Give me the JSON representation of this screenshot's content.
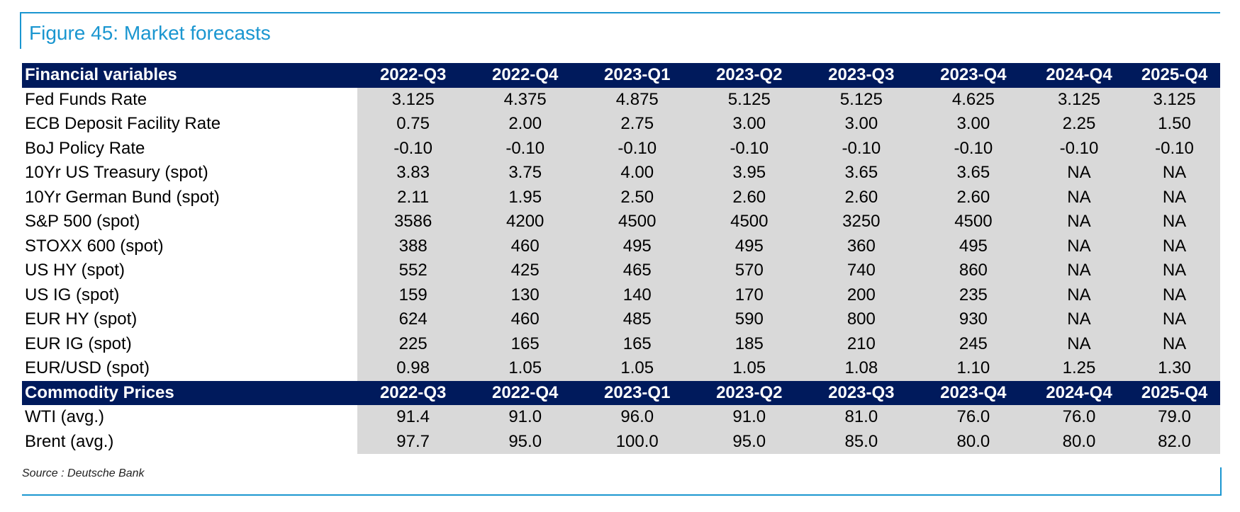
{
  "title": "Figure 45: Market forecasts",
  "source": "Source : Deutsche Bank",
  "chart_data": {
    "type": "table",
    "sections": [
      {
        "header": "Financial variables",
        "columns": [
          "2022-Q3",
          "2022-Q4",
          "2023-Q1",
          "2023-Q2",
          "2023-Q3",
          "2023-Q4",
          "2024-Q4",
          "2025-Q4"
        ],
        "rows": [
          {
            "label": "Fed Funds Rate",
            "values": [
              "3.125",
              "4.375",
              "4.875",
              "5.125",
              "5.125",
              "4.625",
              "3.125",
              "3.125"
            ]
          },
          {
            "label": "ECB Deposit Facility Rate",
            "values": [
              "0.75",
              "2.00",
              "2.75",
              "3.00",
              "3.00",
              "3.00",
              "2.25",
              "1.50"
            ]
          },
          {
            "label": "BoJ Policy Rate",
            "values": [
              "-0.10",
              "-0.10",
              "-0.10",
              "-0.10",
              "-0.10",
              "-0.10",
              "-0.10",
              "-0.10"
            ]
          },
          {
            "label": "10Yr US Treasury (spot)",
            "values": [
              "3.83",
              "3.75",
              "4.00",
              "3.95",
              "3.65",
              "3.65",
              "NA",
              "NA"
            ]
          },
          {
            "label": "10Yr German Bund (spot)",
            "values": [
              "2.11",
              "1.95",
              "2.50",
              "2.60",
              "2.60",
              "2.60",
              "NA",
              "NA"
            ]
          },
          {
            "label": "S&P 500 (spot)",
            "values": [
              "3586",
              "4200",
              "4500",
              "4500",
              "3250",
              "4500",
              "NA",
              "NA"
            ]
          },
          {
            "label": "STOXX 600 (spot)",
            "values": [
              "388",
              "460",
              "495",
              "495",
              "360",
              "495",
              "NA",
              "NA"
            ]
          },
          {
            "label": "US HY (spot)",
            "values": [
              "552",
              "425",
              "465",
              "570",
              "740",
              "860",
              "NA",
              "NA"
            ]
          },
          {
            "label": "US IG (spot)",
            "values": [
              "159",
              "130",
              "140",
              "170",
              "200",
              "235",
              "NA",
              "NA"
            ]
          },
          {
            "label": "EUR HY (spot)",
            "values": [
              "624",
              "460",
              "485",
              "590",
              "800",
              "930",
              "NA",
              "NA"
            ]
          },
          {
            "label": "EUR IG (spot)",
            "values": [
              "225",
              "165",
              "165",
              "185",
              "210",
              "245",
              "NA",
              "NA"
            ]
          },
          {
            "label": "EUR/USD (spot)",
            "values": [
              "0.98",
              "1.05",
              "1.05",
              "1.05",
              "1.08",
              "1.10",
              "1.25",
              "1.30"
            ]
          }
        ]
      },
      {
        "header": "Commodity Prices",
        "columns": [
          "2022-Q3",
          "2022-Q4",
          "2023-Q1",
          "2023-Q2",
          "2023-Q3",
          "2023-Q4",
          "2024-Q4",
          "2025-Q4"
        ],
        "rows": [
          {
            "label": "WTI (avg.)",
            "values": [
              "91.4",
              "91.0",
              "96.0",
              "91.0",
              "81.0",
              "76.0",
              "76.0",
              "79.0"
            ]
          },
          {
            "label": "Brent (avg.)",
            "values": [
              "97.7",
              "95.0",
              "100.0",
              "95.0",
              "85.0",
              "80.0",
              "80.0",
              "82.0"
            ]
          }
        ]
      }
    ]
  }
}
